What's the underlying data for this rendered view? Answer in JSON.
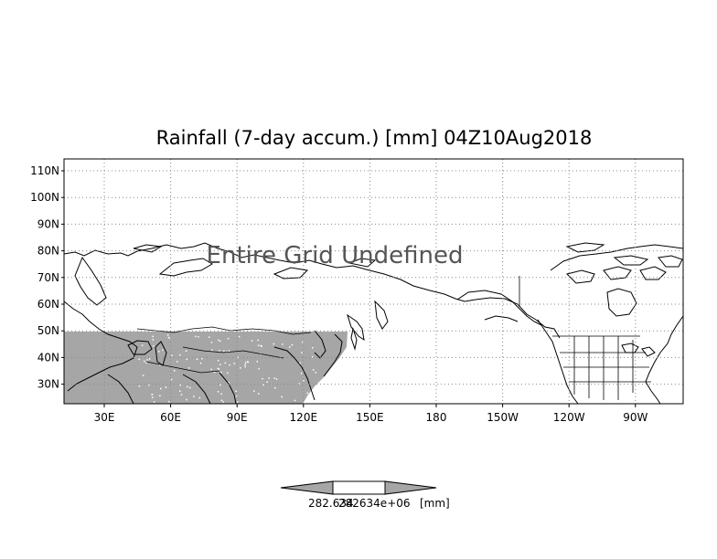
{
  "title": "Rainfall (7-day accum.) [mm] 04Z10Aug2018",
  "overlay_text": "Entire Grid Undefined",
  "lat_labels": [
    "110N",
    "100N",
    "90N",
    "80N",
    "70N",
    "60N",
    "50N",
    "40N",
    "30N"
  ],
  "lon_labels": [
    "30E",
    "60E",
    "90E",
    "120E",
    "150E",
    "180",
    "150W",
    "120W",
    "90W"
  ],
  "colorbar": {
    "min_label": "282.634",
    "max_label": "282634e+06",
    "unit_label": "[mm]"
  },
  "colors": {
    "undefined_fill": "#a6a6a6",
    "coastline": "#000000",
    "grid": "#888888"
  },
  "icons": {
    "colorbar_left": "left-triangle-icon",
    "colorbar_right": "right-triangle-icon"
  }
}
